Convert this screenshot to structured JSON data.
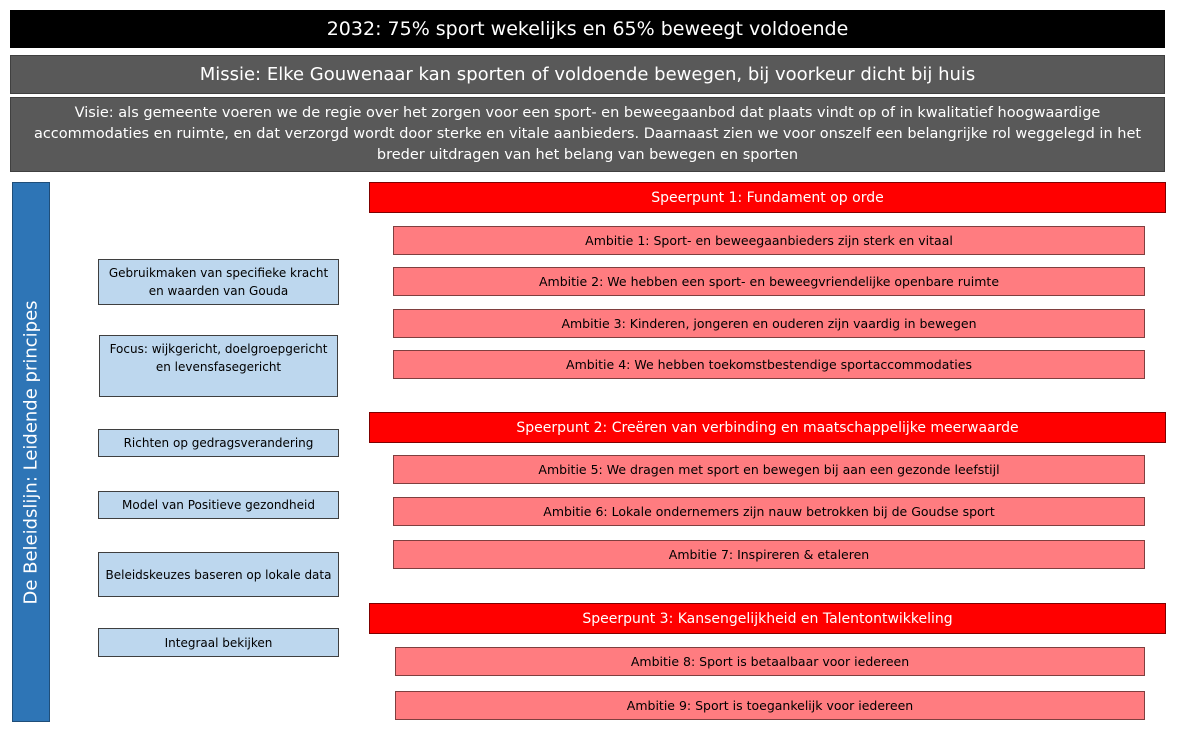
{
  "title": "2032: 75% sport wekelijks en 65% beweegt voldoende",
  "missie": "Missie: Elke Gouwenaar kan sporten of voldoende bewegen, bij voorkeur dicht bij huis",
  "visie": "Visie: als gemeente voeren we de regie over het zorgen voor een sport- en beweegaanbod dat plaats vindt op of in kwalitatief hoogwaardige accommodaties en ruimte, en dat verzorgd wordt door sterke en vitale aanbieders. Daarnaast zien we voor onszelf een belangrijke rol weggelegd in het breder uitdragen van het belang van bewegen en sporten",
  "side_label": "De Beleidslijn: Leidende principes",
  "principes": [
    "Gebruikmaken van specifieke kracht en waarden van Gouda",
    "Focus: wijkgericht, doelgroepgericht en levensfasegericht",
    "Richten op gedragsverandering",
    "Model van Positieve gezondheid",
    "Beleidskeuzes baseren op lokale data",
    "Integraal bekijken"
  ],
  "speerpunten": [
    "Speerpunt 1: Fundament op orde",
    "Speerpunt 2: Creëren van verbinding en maatschappelijke meerwaarde",
    "Speerpunt 3: Kansengelijkheid en Talentontwikkeling"
  ],
  "ambities": [
    "Ambitie 1: Sport- en beweegaanbieders zijn sterk en vitaal",
    "Ambitie 2: We hebben een sport- en beweegvriendelijke openbare ruimte",
    "Ambitie 3: Kinderen, jongeren en ouderen zijn vaardig in bewegen",
    "Ambitie 4: We hebben toekomstbestendige sportaccommodaties",
    "Ambitie 5: We dragen met sport en bewegen bij aan een gezonde leefstijl",
    "Ambitie 6: Lokale ondernemers zijn nauw betrokken bij de Goudse sport",
    "Ambitie 7: Inspireren & etaleren",
    "Ambitie 8: Sport is betaalbaar voor iedereen",
    "Ambitie 9: Sport is toegankelijk voor iedereen"
  ],
  "colors": {
    "title": "#000000",
    "gray": "#595959",
    "side": "#2E75B6",
    "principe": "#BDD7EE",
    "speerpunt": "#FF0000",
    "ambitie": "#FF7C80"
  }
}
